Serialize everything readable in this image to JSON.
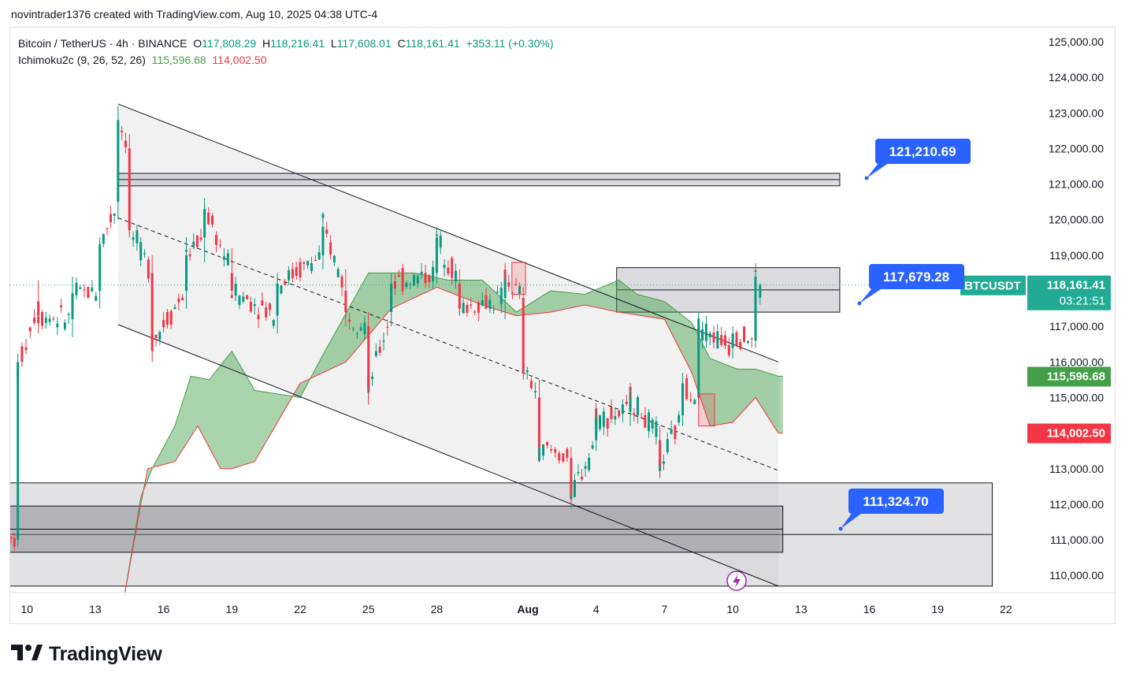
{
  "header": {
    "credit": "novintrader1376 created with TradingView.com, Aug 10, 2025 04:38 UTC-4"
  },
  "legend": {
    "symbol": "Bitcoin / TetherUS · 4h · BINANCE",
    "o_label": "O",
    "o": "117,808.29",
    "h_label": "H",
    "h": "118,216.41",
    "l_label": "L",
    "l": "117,608.01",
    "c_label": "C",
    "c": "118,161.41",
    "change": "+353.11 (+0.30%)",
    "indicator": "Ichimoku2c (9, 26, 52, 26)",
    "ind_val1": "115,596.68",
    "ind_val2": "114,002.50"
  },
  "price_tag": {
    "symbol": "BTCUSDT",
    "price": "118,161.41",
    "countdown": "03:21:51"
  },
  "axis_tags": {
    "span_a": "115,596.68",
    "span_b": "114,002.50"
  },
  "callouts": [
    "121,210.69",
    "117,679.28",
    "111,324.70"
  ],
  "logo": {
    "text": "TradingView"
  },
  "colors": {
    "up": "#089981",
    "down": "#f23645",
    "cloud": "#43a047",
    "callout": "#2962ff",
    "price_tag": "#22ab94"
  },
  "chart_data": {
    "type": "candlestick",
    "symbol": "BTCUSDT",
    "interval": "4h",
    "y_ticks": [
      "125,000.00",
      "124,000.00",
      "123,000.00",
      "122,000.00",
      "121,000.00",
      "120,000.00",
      "119,000.00",
      "118,000.00",
      "117,000.00",
      "116,000.00",
      "115,000.00",
      "114,000.00",
      "113,000.00",
      "112,000.00",
      "111,000.00",
      "110,000.00"
    ],
    "x_ticks": [
      "10",
      "13",
      "16",
      "19",
      "22",
      "25",
      "28",
      "Aug",
      "4",
      "7",
      "10",
      "13",
      "16",
      "19",
      "22"
    ],
    "ylim": [
      109500,
      125600
    ],
    "last_price": 118161.41,
    "horizontal_lines": [
      121210.69,
      117679.28,
      111324.7
    ],
    "zones": [
      {
        "from_day": 14.0,
        "to_day": 45.7,
        "low": 120950,
        "high": 121300
      },
      {
        "from_day": 35.9,
        "to_day": 45.7,
        "low": 117400,
        "high": 118650
      },
      {
        "from_day": 9.0,
        "to_day": 52.4,
        "low": 109700,
        "high": 112600
      },
      {
        "from_day": 9.0,
        "to_day": 43.2,
        "low": 110650,
        "high": 111950
      }
    ],
    "channel": {
      "upper": [
        [
          14.0,
          123250
        ],
        [
          43.0,
          116000
        ]
      ],
      "middle": [
        [
          14.0,
          120050
        ],
        [
          43.0,
          112950
        ]
      ],
      "lower": [
        [
          14.0,
          117050
        ],
        [
          43.0,
          109700
        ]
      ]
    },
    "cloud_a": [
      [
        14.3,
        109500
      ],
      [
        15.0,
        112200
      ],
      [
        15.5,
        113000
      ],
      [
        16.5,
        114200
      ],
      [
        17.2,
        115600
      ],
      [
        18.0,
        115500
      ],
      [
        19.0,
        116300
      ],
      [
        20.0,
        115200
      ],
      [
        22.0,
        115000
      ],
      [
        23.0,
        116200
      ],
      [
        25.0,
        118500
      ],
      [
        27.0,
        118500
      ],
      [
        28.5,
        118300
      ],
      [
        30.0,
        118300
      ],
      [
        31.5,
        117400
      ],
      [
        33.0,
        118000
      ],
      [
        34.5,
        117900
      ],
      [
        36.0,
        118300
      ],
      [
        36.8,
        117900
      ],
      [
        38.0,
        117700
      ],
      [
        39.2,
        117100
      ],
      [
        40.0,
        116100
      ],
      [
        41.2,
        115800
      ],
      [
        42.0,
        115800
      ],
      [
        43.0,
        115600
      ],
      [
        43.2,
        115600
      ]
    ],
    "cloud_b": [
      [
        14.3,
        109500
      ],
      [
        15.0,
        112000
      ],
      [
        15.3,
        113000
      ],
      [
        16.5,
        113200
      ],
      [
        17.5,
        114200
      ],
      [
        18.5,
        113000
      ],
      [
        19.0,
        113000
      ],
      [
        20.0,
        113200
      ],
      [
        22.0,
        115400
      ],
      [
        24.0,
        116000
      ],
      [
        26.0,
        117500
      ],
      [
        28.0,
        118100
      ],
      [
        30.0,
        117600
      ],
      [
        31.5,
        117300
      ],
      [
        33.0,
        117400
      ],
      [
        34.5,
        117600
      ],
      [
        36.0,
        117400
      ],
      [
        38.0,
        117200
      ],
      [
        39.2,
        115700
      ],
      [
        40.0,
        114200
      ],
      [
        41.0,
        114300
      ],
      [
        42.0,
        115000
      ],
      [
        43.0,
        114000
      ],
      [
        43.2,
        114000
      ]
    ],
    "candles_sample": [
      {
        "day": 9.0,
        "o": 111300,
        "h": 111900,
        "l": 110600,
        "c": 110900
      },
      {
        "day": 9.6,
        "o": 111000,
        "h": 116000,
        "l": 110800,
        "c": 115800
      },
      {
        "day": 10.5,
        "o": 117700,
        "h": 118300,
        "l": 116800,
        "c": 117300
      },
      {
        "day": 12.0,
        "o": 117200,
        "h": 118400,
        "l": 116700,
        "c": 117900
      },
      {
        "day": 13.2,
        "o": 118000,
        "h": 119500,
        "l": 117500,
        "c": 119300
      },
      {
        "day": 14.0,
        "o": 120500,
        "h": 123200,
        "l": 120000,
        "c": 122800
      },
      {
        "day": 14.5,
        "o": 122000,
        "h": 122400,
        "l": 119500,
        "c": 119700
      },
      {
        "day": 15.5,
        "o": 118500,
        "h": 119000,
        "l": 116000,
        "c": 116600
      },
      {
        "day": 17.0,
        "o": 118000,
        "h": 119500,
        "l": 117500,
        "c": 119000
      },
      {
        "day": 17.8,
        "o": 119500,
        "h": 120600,
        "l": 118800,
        "c": 120300
      },
      {
        "day": 19.0,
        "o": 118500,
        "h": 119200,
        "l": 117800,
        "c": 118000
      },
      {
        "day": 21.0,
        "o": 117300,
        "h": 118500,
        "l": 116800,
        "c": 118200
      },
      {
        "day": 23.0,
        "o": 119000,
        "h": 120200,
        "l": 118600,
        "c": 119800
      },
      {
        "day": 24.0,
        "o": 118000,
        "h": 118600,
        "l": 117000,
        "c": 117400
      },
      {
        "day": 25.0,
        "o": 117000,
        "h": 117400,
        "l": 114800,
        "c": 115300
      },
      {
        "day": 26.0,
        "o": 117400,
        "h": 118500,
        "l": 117000,
        "c": 118200
      },
      {
        "day": 28.0,
        "o": 118500,
        "h": 119800,
        "l": 118200,
        "c": 119500
      },
      {
        "day": 29.0,
        "o": 118200,
        "h": 118600,
        "l": 117300,
        "c": 117500
      },
      {
        "day": 31.0,
        "o": 117800,
        "h": 118500,
        "l": 117200,
        "c": 118300
      },
      {
        "day": 31.8,
        "o": 117800,
        "h": 118100,
        "l": 115500,
        "c": 115800
      },
      {
        "day": 32.5,
        "o": 115000,
        "h": 115500,
        "l": 113200,
        "c": 113600
      },
      {
        "day": 33.9,
        "o": 113300,
        "h": 113600,
        "l": 112000,
        "c": 112300
      },
      {
        "day": 35.0,
        "o": 113800,
        "h": 114700,
        "l": 113500,
        "c": 114400
      },
      {
        "day": 36.5,
        "o": 114600,
        "h": 115300,
        "l": 114200,
        "c": 115000
      },
      {
        "day": 37.8,
        "o": 113800,
        "h": 114200,
        "l": 112800,
        "c": 113100
      },
      {
        "day": 38.8,
        "o": 114500,
        "h": 115700,
        "l": 114200,
        "c": 115400
      },
      {
        "day": 39.5,
        "o": 115000,
        "h": 117300,
        "l": 114800,
        "c": 117000
      },
      {
        "day": 41.0,
        "o": 116400,
        "h": 117000,
        "l": 116100,
        "c": 116800
      },
      {
        "day": 42.0,
        "o": 116600,
        "h": 118700,
        "l": 116400,
        "c": 118400
      },
      {
        "day": 42.2,
        "o": 117808.29,
        "h": 118216.41,
        "l": 117608.01,
        "c": 118161.41
      }
    ]
  }
}
